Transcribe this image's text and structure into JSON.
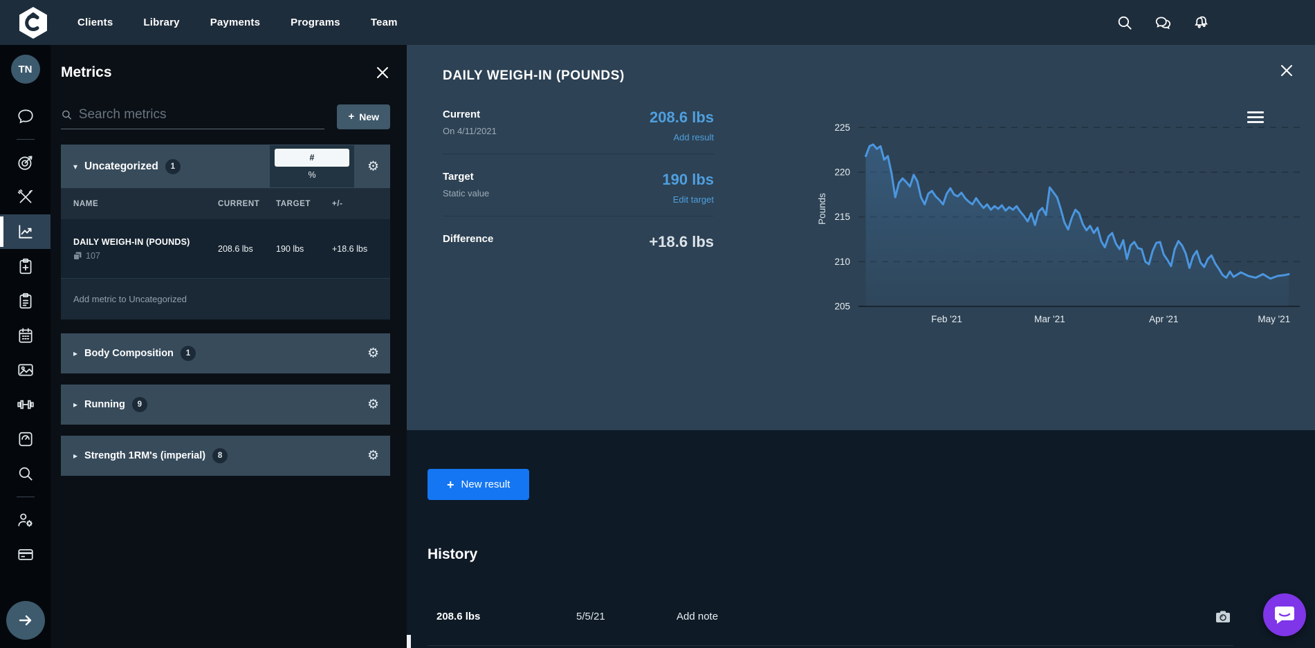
{
  "nav": {
    "logo_letter": "e",
    "items": [
      "Clients",
      "Library",
      "Payments",
      "Programs",
      "Team"
    ],
    "icons": [
      "search-icon",
      "messages-icon",
      "notifications-icon"
    ]
  },
  "rail": {
    "avatar_initials": "TN",
    "icons": [
      "chat-icon",
      "goals-target-icon",
      "nutrition-icon",
      "metrics-chart-icon",
      "program-add-icon",
      "program-list-icon",
      "calendar-icon",
      "photos-icon",
      "workout-dumbbell-icon",
      "weigh-in-scale-icon",
      "search-icon",
      "client-settings-icon",
      "billing-card-icon",
      "expand-arrow-icon"
    ],
    "active_icon": "metrics-chart-icon"
  },
  "metrics_panel": {
    "title": "Metrics",
    "search": {
      "placeholder": "Search metrics"
    },
    "new_button": {
      "plus": "+",
      "label": "New"
    },
    "uncategorized": {
      "caret": "▾",
      "label": "Uncategorized",
      "count": "1",
      "unit_toggle": {
        "selected": "#",
        "other": "%"
      },
      "table": {
        "headers": [
          "NAME",
          "CURRENT",
          "TARGET",
          "+/-"
        ],
        "rows": [
          {
            "name": "DAILY WEIGH-IN (POUNDS)",
            "results_count": "107",
            "current": "208.6 lbs",
            "target": "190 lbs",
            "diff": "+18.6 lbs"
          }
        ]
      },
      "add_label": "Add metric to Uncategorized"
    },
    "categories": [
      {
        "caret": "▸",
        "label": "Body Composition",
        "count": "1"
      },
      {
        "caret": "▸",
        "label": "Running",
        "count": "9"
      },
      {
        "caret": "▸",
        "label": "Strength 1RM's (imperial)",
        "count": "8"
      }
    ]
  },
  "detail": {
    "title": "DAILY WEIGH-IN (POUNDS)",
    "stats": [
      {
        "label": "Current",
        "sub": "On 4/11/2021",
        "value": "208.6 lbs",
        "action": "Add result"
      },
      {
        "label": "Target",
        "sub": "Static value",
        "value": "190 lbs",
        "action": "Edit target"
      },
      {
        "label": "Difference",
        "value": "+18.6 lbs"
      }
    ],
    "new_result": {
      "plus": "+",
      "label": "New result"
    },
    "history": {
      "heading": "History",
      "rows": [
        {
          "value": "208.6 lbs",
          "date": "5/5/21",
          "note_action": "Add note"
        }
      ]
    }
  },
  "chart_data": {
    "type": "area",
    "title": "",
    "xlabel": "",
    "ylabel": "Pounds",
    "ylim": [
      205,
      226.8
    ],
    "yticks": [
      225,
      220,
      215,
      210,
      205
    ],
    "grid": "dashed horizontal gridlines, solid bottom axis",
    "legend": "none",
    "line_color": "#4b96e0",
    "fill_color": "#4d92d4",
    "x_unit": "days since 1/10/2021",
    "x_range": [
      0,
      120
    ],
    "xticks": [
      {
        "day": 22,
        "label": "Feb '21"
      },
      {
        "day": 50,
        "label": "Mar '21"
      },
      {
        "day": 81,
        "label": "Apr '21"
      },
      {
        "day": 111,
        "label": "May '21"
      }
    ],
    "points": [
      [
        0,
        221.8
      ],
      [
        1,
        222.9
      ],
      [
        2,
        223.1
      ],
      [
        3,
        222.6
      ],
      [
        4,
        222.9
      ],
      [
        5,
        221.4
      ],
      [
        6,
        221.8
      ],
      [
        7,
        219.9
      ],
      [
        8,
        217.2
      ],
      [
        9,
        218.8
      ],
      [
        10,
        219.3
      ],
      [
        11,
        218.9
      ],
      [
        12,
        218.4
      ],
      [
        13,
        219.7
      ],
      [
        14,
        219.0
      ],
      [
        15,
        217.2
      ],
      [
        16,
        216.4
      ],
      [
        17,
        217.6
      ],
      [
        18,
        217.9
      ],
      [
        19,
        217.3
      ],
      [
        20,
        216.9
      ],
      [
        21,
        216.4
      ],
      [
        22,
        217.6
      ],
      [
        23,
        218.2
      ],
      [
        24,
        217.5
      ],
      [
        25,
        217.3
      ],
      [
        26,
        217.7
      ],
      [
        27,
        217.1
      ],
      [
        28,
        216.7
      ],
      [
        29,
        216.4
      ],
      [
        30,
        217.1
      ],
      [
        31,
        216.5
      ],
      [
        32,
        216.0
      ],
      [
        33,
        216.4
      ],
      [
        34,
        215.8
      ],
      [
        35,
        216.2
      ],
      [
        36,
        215.9
      ],
      [
        37,
        216.3
      ],
      [
        38,
        215.7
      ],
      [
        39,
        216.1
      ],
      [
        40,
        215.8
      ],
      [
        41,
        216.2
      ],
      [
        42,
        215.6
      ],
      [
        43,
        215.1
      ],
      [
        44,
        214.5
      ],
      [
        45,
        215.4
      ],
      [
        46,
        214.1
      ],
      [
        47,
        215.6
      ],
      [
        48,
        216.0
      ],
      [
        49,
        215.2
      ],
      [
        50,
        218.3
      ],
      [
        52,
        217.2
      ],
      [
        53,
        215.9
      ],
      [
        54,
        214.4
      ],
      [
        55,
        213.6
      ],
      [
        56,
        214.9
      ],
      [
        57,
        215.8
      ],
      [
        58,
        215.4
      ],
      [
        59,
        214.2
      ],
      [
        60,
        213.5
      ],
      [
        61,
        214.0
      ],
      [
        62,
        213.2
      ],
      [
        63,
        213.8
      ],
      [
        64,
        212.3
      ],
      [
        65,
        211.6
      ],
      [
        66,
        212.8
      ],
      [
        67,
        213.2
      ],
      [
        68,
        212.0
      ],
      [
        69,
        211.4
      ],
      [
        70,
        212.4
      ],
      [
        71,
        210.3
      ],
      [
        72,
        211.8
      ],
      [
        73,
        212.2
      ],
      [
        74,
        211.5
      ],
      [
        75,
        211.4
      ],
      [
        76,
        210.0
      ],
      [
        77,
        209.7
      ],
      [
        78,
        211.2
      ],
      [
        79,
        212.1
      ],
      [
        80,
        212.2
      ],
      [
        81,
        210.8
      ],
      [
        82,
        210.2
      ],
      [
        83,
        209.5
      ],
      [
        84,
        211.4
      ],
      [
        85,
        212.3
      ],
      [
        86,
        211.8
      ],
      [
        87,
        210.9
      ],
      [
        88,
        209.3
      ],
      [
        89,
        210.6
      ],
      [
        90,
        211.2
      ],
      [
        91,
        209.9
      ],
      [
        92,
        209.4
      ],
      [
        93,
        210.3
      ],
      [
        94,
        210.7
      ],
      [
        95,
        209.8
      ],
      [
        96,
        209.2
      ],
      [
        97,
        208.5
      ],
      [
        98,
        208.2
      ],
      [
        99,
        208.9
      ],
      [
        100,
        208.3
      ],
      [
        102,
        208.8
      ],
      [
        104,
        208.4
      ],
      [
        106,
        208.2
      ],
      [
        108,
        208.6
      ],
      [
        110,
        208.1
      ],
      [
        112,
        208.4
      ],
      [
        114,
        208.5
      ],
      [
        115,
        208.6
      ]
    ]
  },
  "colors": {
    "topnav_bg": "#1e2d3b",
    "rail_bg": "#04080c",
    "panel_bg": "#0b1016",
    "section_bg": "#374b5b",
    "main_top_bg": "#2d4254",
    "main_bottom_bg": "#0e1a26",
    "accent_blue": "#4f9fdf",
    "primary_button": "#1476f2",
    "intercom_purple": "#7f35e8"
  }
}
